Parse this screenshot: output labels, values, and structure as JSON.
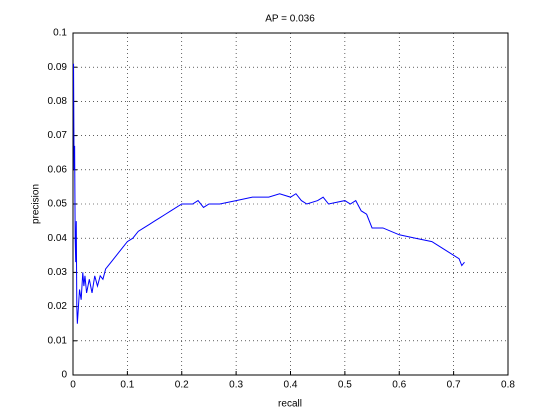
{
  "chart_data": {
    "type": "line",
    "title": "AP = 0.036",
    "x_label": "recall",
    "y_label": "precision",
    "x": [
      0.001,
      0.002,
      0.003,
      0.004,
      0.005,
      0.006,
      0.007,
      0.008,
      0.01,
      0.012,
      0.015,
      0.018,
      0.02,
      0.022,
      0.025,
      0.03,
      0.035,
      0.04,
      0.045,
      0.05,
      0.055,
      0.06,
      0.065,
      0.07,
      0.08,
      0.09,
      0.1,
      0.11,
      0.12,
      0.13,
      0.14,
      0.15,
      0.16,
      0.17,
      0.18,
      0.2,
      0.22,
      0.23,
      0.24,
      0.25,
      0.27,
      0.3,
      0.33,
      0.36,
      0.38,
      0.4,
      0.41,
      0.42,
      0.43,
      0.45,
      0.46,
      0.47,
      0.5,
      0.51,
      0.52,
      0.53,
      0.54,
      0.55,
      0.57,
      0.6,
      0.63,
      0.66,
      0.68,
      0.7,
      0.71,
      0.715,
      0.72
    ],
    "series": [
      {
        "name": "precision",
        "color": "#0000ff",
        "values": [
          0.091,
          0.06,
          0.067,
          0.04,
          0.033,
          0.045,
          0.02,
          0.015,
          0.02,
          0.025,
          0.022,
          0.03,
          0.026,
          0.029,
          0.024,
          0.028,
          0.024,
          0.029,
          0.026,
          0.029,
          0.028,
          0.031,
          0.032,
          0.033,
          0.035,
          0.037,
          0.039,
          0.04,
          0.042,
          0.043,
          0.044,
          0.045,
          0.046,
          0.047,
          0.048,
          0.05,
          0.05,
          0.051,
          0.049,
          0.05,
          0.05,
          0.051,
          0.052,
          0.052,
          0.053,
          0.052,
          0.053,
          0.051,
          0.05,
          0.051,
          0.052,
          0.05,
          0.051,
          0.05,
          0.051,
          0.048,
          0.047,
          0.043,
          0.043,
          0.041,
          0.04,
          0.039,
          0.037,
          0.035,
          0.034,
          0.032,
          0.033
        ]
      }
    ],
    "xlim": [
      0,
      0.8
    ],
    "xticks": [
      0,
      0.1,
      0.2,
      0.3,
      0.4,
      0.5,
      0.6,
      0.7,
      0.8
    ],
    "ylim": [
      0,
      0.1
    ],
    "yticks": [
      0,
      0.01,
      0.02,
      0.03,
      0.04,
      0.05,
      0.06,
      0.07,
      0.08,
      0.09,
      0.1
    ],
    "grid": true
  }
}
